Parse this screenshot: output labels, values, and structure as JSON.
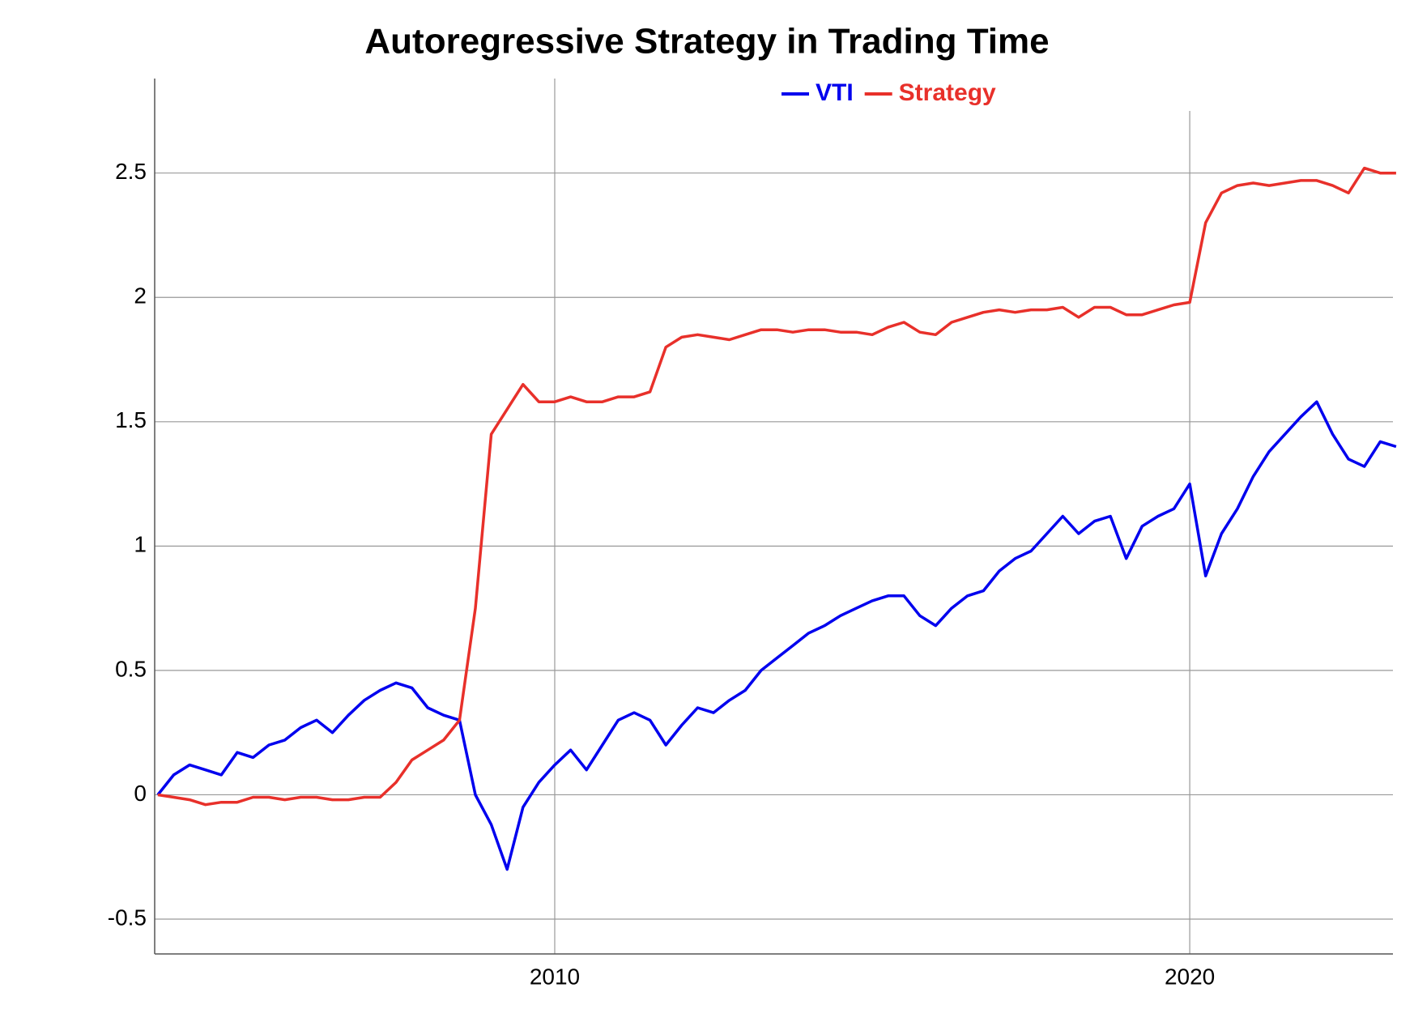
{
  "chart_data": {
    "type": "line",
    "title": "Autoregressive Strategy in Trading Time",
    "x": [
      2003.75,
      2004,
      2004.25,
      2004.5,
      2004.75,
      2005,
      2005.25,
      2005.5,
      2005.75,
      2006,
      2006.25,
      2006.5,
      2006.75,
      2007,
      2007.25,
      2007.5,
      2007.75,
      2008,
      2008.25,
      2008.5,
      2008.75,
      2009,
      2009.25,
      2009.5,
      2009.75,
      2010,
      2010.25,
      2010.5,
      2010.75,
      2011,
      2011.25,
      2011.5,
      2011.75,
      2012,
      2012.25,
      2012.5,
      2012.75,
      2013,
      2013.25,
      2013.5,
      2013.75,
      2014,
      2014.25,
      2014.5,
      2014.75,
      2015,
      2015.25,
      2015.5,
      2015.75,
      2016,
      2016.25,
      2016.5,
      2016.75,
      2017,
      2017.25,
      2017.5,
      2017.75,
      2018,
      2018.25,
      2018.5,
      2018.75,
      2019,
      2019.25,
      2019.5,
      2019.75,
      2020,
      2020.25,
      2020.5,
      2020.75,
      2021,
      2021.25,
      2021.5,
      2021.75,
      2022,
      2022.25,
      2022.5,
      2022.75,
      2023,
      2023.25
    ],
    "series": [
      {
        "name": "VTI",
        "color": "#0000ee",
        "values": [
          0.0,
          0.08,
          0.12,
          0.1,
          0.08,
          0.17,
          0.15,
          0.2,
          0.22,
          0.27,
          0.3,
          0.25,
          0.32,
          0.38,
          0.42,
          0.45,
          0.43,
          0.35,
          0.32,
          0.3,
          0.0,
          -0.12,
          -0.3,
          -0.05,
          0.05,
          0.12,
          0.18,
          0.1,
          0.2,
          0.3,
          0.33,
          0.3,
          0.2,
          0.28,
          0.35,
          0.33,
          0.38,
          0.42,
          0.5,
          0.55,
          0.6,
          0.65,
          0.68,
          0.72,
          0.75,
          0.78,
          0.8,
          0.8,
          0.72,
          0.68,
          0.75,
          0.8,
          0.82,
          0.9,
          0.95,
          0.98,
          1.05,
          1.12,
          1.05,
          1.1,
          1.12,
          0.95,
          1.08,
          1.12,
          1.15,
          1.25,
          0.88,
          1.05,
          1.15,
          1.28,
          1.38,
          1.45,
          1.52,
          1.58,
          1.45,
          1.35,
          1.32,
          1.42,
          1.4
        ]
      },
      {
        "name": "Strategy",
        "color": "#e8302a",
        "values": [
          0.0,
          -0.01,
          -0.02,
          -0.04,
          -0.03,
          -0.03,
          -0.01,
          -0.01,
          -0.02,
          -0.01,
          -0.01,
          -0.02,
          -0.02,
          -0.01,
          -0.01,
          0.05,
          0.14,
          0.18,
          0.22,
          0.3,
          0.75,
          1.45,
          1.55,
          1.65,
          1.58,
          1.58,
          1.6,
          1.58,
          1.58,
          1.6,
          1.6,
          1.62,
          1.8,
          1.84,
          1.85,
          1.84,
          1.83,
          1.85,
          1.87,
          1.87,
          1.86,
          1.87,
          1.87,
          1.86,
          1.86,
          1.85,
          1.88,
          1.9,
          1.86,
          1.85,
          1.9,
          1.92,
          1.94,
          1.95,
          1.94,
          1.95,
          1.95,
          1.96,
          1.92,
          1.96,
          1.96,
          1.93,
          1.93,
          1.95,
          1.97,
          1.98,
          2.3,
          2.42,
          2.45,
          2.46,
          2.45,
          2.46,
          2.47,
          2.47,
          2.45,
          2.42,
          2.52,
          2.5,
          2.5
        ]
      }
    ],
    "xlim": [
      2003.7,
      2023.2
    ],
    "xticks": [
      2010,
      2020
    ],
    "ylim": [
      -0.64,
      2.88
    ],
    "yticks": [
      -0.5,
      0,
      0.5,
      1,
      1.5,
      2,
      2.5
    ],
    "grid": true,
    "legend": "top-center"
  }
}
